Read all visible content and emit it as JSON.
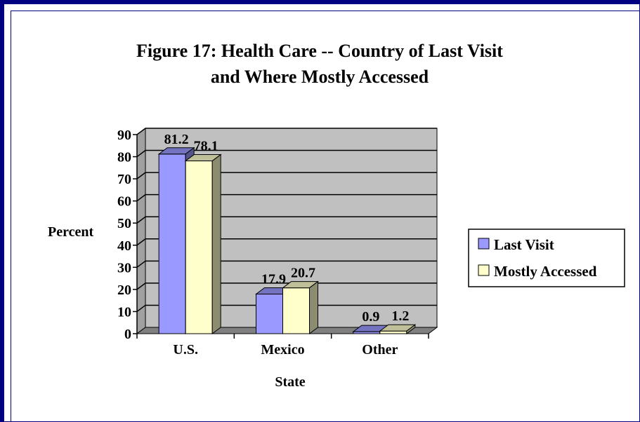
{
  "colors": {
    "frame": "#000080",
    "plot_back": "#c0c0c0",
    "plot_side": "#a0a0a0",
    "floor": "#808080",
    "series_last_visit": "#9999ff",
    "series_mostly_accessed": "#ffffcc"
  },
  "chart_data": {
    "type": "bar",
    "title_line1": "Figure 17: Health Care -- Country of Last Visit",
    "title_line2": "and Where Mostly Accessed",
    "xlabel": "State",
    "ylabel": "Percent",
    "categories": [
      "U.S.",
      "Mexico",
      "Other"
    ],
    "ylim": [
      0,
      90
    ],
    "yticks": [
      0,
      10,
      20,
      30,
      40,
      50,
      60,
      70,
      80,
      90
    ],
    "grid": true,
    "legend_position": "right",
    "series": [
      {
        "name": "Last Visit",
        "values": [
          81.2,
          17.9,
          0.9
        ],
        "labels": [
          "81.2",
          "17.9",
          "0.9"
        ]
      },
      {
        "name": "Mostly Accessed",
        "values": [
          78.1,
          20.7,
          1.2
        ],
        "labels": [
          "78.1",
          "20.7",
          "1.2"
        ]
      }
    ]
  }
}
